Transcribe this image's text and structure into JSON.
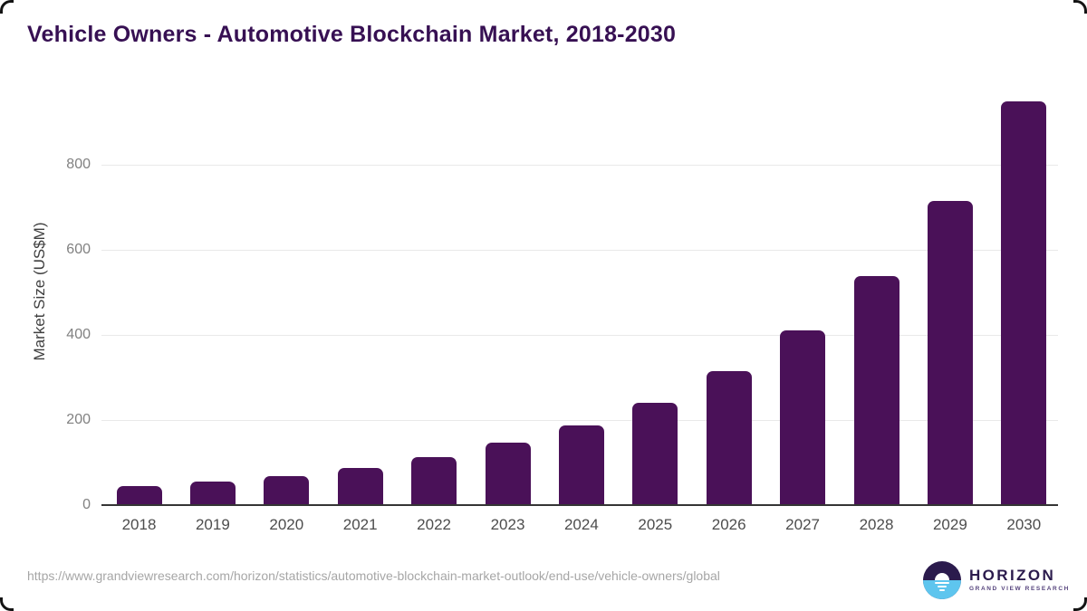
{
  "chart_data": {
    "type": "bar",
    "title": "Vehicle Owners - Automotive Blockchain Market, 2018-2030",
    "categories": [
      "2018",
      "2019",
      "2020",
      "2021",
      "2022",
      "2023",
      "2024",
      "2025",
      "2026",
      "2027",
      "2028",
      "2029",
      "2030"
    ],
    "values": [
      45,
      56,
      68,
      88,
      113,
      146,
      187,
      241,
      315,
      410,
      538,
      714,
      950
    ],
    "xlabel": "",
    "ylabel": "Market Size (US$M)",
    "ylim": [
      0,
      1000
    ],
    "yticks": [
      0,
      200,
      400,
      600,
      800
    ],
    "grid": true,
    "legend_position": "none",
    "bar_color": "#4a1158"
  },
  "colors": {
    "bar": "#4a1158",
    "title": "#371053",
    "gridline": "#e9e9e9",
    "axis_line": "#353535",
    "tick_label": "#818181",
    "x_label": "#4d4d4d",
    "url_text": "#a6a6a6",
    "logo_dark": "#2b1b4d",
    "logo_blue": "#5ec5ee"
  },
  "footer": {
    "source_url": "https://www.grandviewresearch.com/horizon/statistics/automotive-blockchain-market-outlook/end-use/vehicle-owners/global",
    "logo": {
      "brand": "HORIZON",
      "tagline": "GRAND VIEW RESEARCH"
    }
  }
}
